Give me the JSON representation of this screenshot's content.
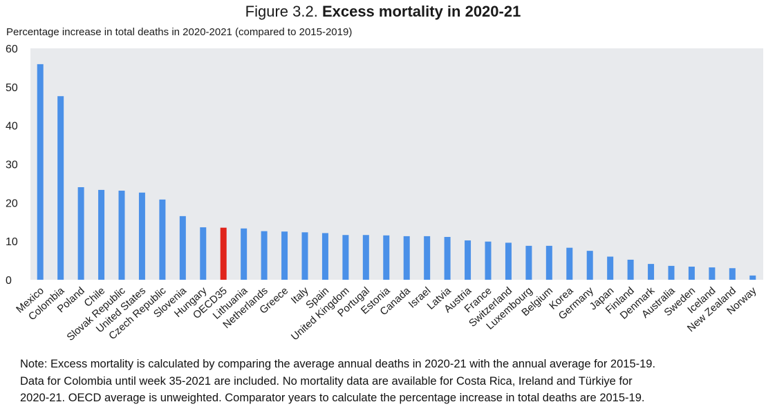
{
  "figure": {
    "prefix": "Figure 3.2. ",
    "title": "Excess mortality in 2020-21"
  },
  "colors": {
    "bar": "#4a90e8",
    "highlight": "#e0241b",
    "plot_background": "#e8eaed",
    "text": "#1a1a1a"
  },
  "chart_data": {
    "type": "bar",
    "title": "Excess mortality in 2020-21",
    "ylabel": "Percentage increase in total deaths in 2020-2021 (compared to 2015-2019)",
    "xlabel": "",
    "ylim": [
      0,
      60
    ],
    "yticks": [
      0,
      10,
      20,
      30,
      40,
      50,
      60
    ],
    "grid": false,
    "highlight_category": "OECD35",
    "categories": [
      "Mexico",
      "Colombia",
      "Poland",
      "Chile",
      "Slovak Republic",
      "United States",
      "Czech Republic",
      "Slovenia",
      "Hungary",
      "OECD35",
      "Lithuania",
      "Netherlands",
      "Greece",
      "Italy",
      "Spain",
      "United Kingdom",
      "Portugal",
      "Estonia",
      "Canada",
      "Israel",
      "Latvia",
      "Austria",
      "France",
      "Switzerland",
      "Luxembourg",
      "Belgium",
      "Korea",
      "Germany",
      "Japan",
      "Finland",
      "Denmark",
      "Australia",
      "Sweden",
      "Iceland",
      "New Zealand",
      "Norway"
    ],
    "values": [
      55.9,
      47.6,
      24.0,
      23.3,
      23.1,
      22.6,
      20.8,
      16.5,
      13.6,
      13.5,
      13.3,
      12.6,
      12.5,
      12.3,
      12.1,
      11.6,
      11.6,
      11.5,
      11.3,
      11.3,
      11.1,
      10.2,
      9.9,
      9.6,
      8.8,
      8.8,
      8.3,
      7.5,
      6.0,
      5.2,
      4.1,
      3.6,
      3.4,
      3.2,
      3.0,
      1.1
    ]
  },
  "note": {
    "lines": [
      "Note: Excess mortality is calculated by comparing the average annual deaths in 2020-21 with the annual average for 2015-19.",
      "Data for Colombia until week 35-2021 are included. No mortality data are available for Costa Rica, Ireland and Türkiye for",
      "2020-21. OECD average is unweighted. Comparator years to calculate the percentage increase in total deaths are 2015-19."
    ]
  }
}
